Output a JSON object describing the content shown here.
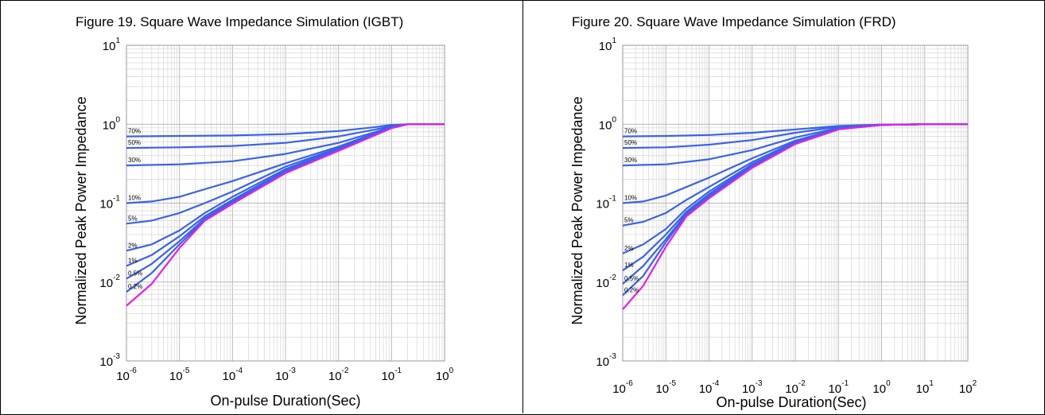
{
  "colors": {
    "duty_series": "#3a63e8",
    "single_pulse": "#e020e8",
    "grid": "#c8c8c8"
  },
  "chart_data": [
    {
      "type": "line",
      "title": "Figure 19. Square Wave Impedance Simulation (IGBT)",
      "xlabel": "On-pulse Duration(Sec)",
      "ylabel": "Normalized Peak Power Impedance",
      "xscale": "log",
      "yscale": "log",
      "xlim": [
        1e-06,
        1
      ],
      "ylim": [
        0.001,
        10
      ],
      "xticks": [
        {
          "base": "10",
          "exp": "-6"
        },
        {
          "base": "10",
          "exp": "-5"
        },
        {
          "base": "10",
          "exp": "-4"
        },
        {
          "base": "10",
          "exp": "-3"
        },
        {
          "base": "10",
          "exp": "-2"
        },
        {
          "base": "10",
          "exp": "-1"
        },
        {
          "base": "10",
          "exp": "0"
        }
      ],
      "yticks": [
        {
          "base": "10",
          "exp": "-3"
        },
        {
          "base": "10",
          "exp": "-2"
        },
        {
          "base": "10",
          "exp": "-1"
        },
        {
          "base": "10",
          "exp": "0"
        },
        {
          "base": "10",
          "exp": "1"
        }
      ],
      "grid": true,
      "series": [
        {
          "name": "70%",
          "x": [
            1e-06,
            1e-05,
            0.0001,
            0.001,
            0.01,
            0.05,
            0.1,
            0.2,
            1
          ],
          "y": [
            0.7,
            0.71,
            0.72,
            0.75,
            0.82,
            0.92,
            0.98,
            1.0,
            1.0
          ]
        },
        {
          "name": "50%",
          "x": [
            1e-06,
            1e-05,
            0.0001,
            0.001,
            0.01,
            0.05,
            0.1,
            0.2,
            1
          ],
          "y": [
            0.5,
            0.51,
            0.53,
            0.58,
            0.7,
            0.86,
            0.95,
            1.0,
            1.0
          ]
        },
        {
          "name": "30%",
          "x": [
            1e-06,
            1e-05,
            0.0001,
            0.001,
            0.01,
            0.05,
            0.1,
            0.2,
            1
          ],
          "y": [
            0.3,
            0.31,
            0.34,
            0.42,
            0.58,
            0.8,
            0.93,
            1.0,
            1.0
          ]
        },
        {
          "name": "10%",
          "x": [
            1e-06,
            3e-06,
            1e-05,
            3e-05,
            0.0001,
            0.001,
            0.01,
            0.1,
            0.2,
            1
          ],
          "y": [
            0.1,
            0.105,
            0.12,
            0.15,
            0.19,
            0.32,
            0.52,
            0.92,
            1.0,
            1.0
          ]
        },
        {
          "name": "5%",
          "x": [
            1e-06,
            3e-06,
            1e-05,
            3e-05,
            0.0001,
            0.001,
            0.01,
            0.1,
            0.2,
            1
          ],
          "y": [
            0.055,
            0.06,
            0.075,
            0.1,
            0.14,
            0.29,
            0.5,
            0.91,
            1.0,
            1.0
          ]
        },
        {
          "name": "2%",
          "x": [
            1e-06,
            3e-06,
            1e-05,
            3e-05,
            0.0001,
            0.001,
            0.01,
            0.1,
            0.2,
            1
          ],
          "y": [
            0.025,
            0.03,
            0.045,
            0.075,
            0.12,
            0.27,
            0.49,
            0.9,
            1.0,
            1.0
          ]
        },
        {
          "name": "1%",
          "x": [
            1e-06,
            3e-06,
            1e-05,
            3e-05,
            0.0001,
            0.001,
            0.01,
            0.1,
            0.2,
            1
          ],
          "y": [
            0.016,
            0.022,
            0.038,
            0.068,
            0.11,
            0.26,
            0.48,
            0.9,
            1.0,
            1.0
          ]
        },
        {
          "name": "0.5%",
          "x": [
            1e-06,
            3e-06,
            1e-05,
            3e-05,
            0.0001,
            0.001,
            0.01,
            0.1,
            0.2,
            1
          ],
          "y": [
            0.011,
            0.017,
            0.033,
            0.064,
            0.105,
            0.255,
            0.48,
            0.9,
            1.0,
            1.0
          ]
        },
        {
          "name": "0.2%",
          "x": [
            1e-06,
            3e-06,
            1e-05,
            3e-05,
            0.0001,
            0.001,
            0.01,
            0.1,
            0.2,
            1
          ],
          "y": [
            0.0075,
            0.013,
            0.03,
            0.062,
            0.1,
            0.25,
            0.47,
            0.9,
            1.0,
            1.0
          ]
        },
        {
          "name": "",
          "single": true,
          "x": [
            1e-06,
            3e-06,
            1e-05,
            3e-05,
            0.0001,
            0.001,
            0.01,
            0.1,
            0.2,
            1
          ],
          "y": [
            0.005,
            0.0095,
            0.027,
            0.06,
            0.098,
            0.24,
            0.46,
            0.89,
            1.0,
            1.0
          ]
        }
      ]
    },
    {
      "type": "line",
      "title": "Figure 20. Square Wave Impedance Simulation (FRD)",
      "xlabel": "On-pulse Duration(Sec)",
      "ylabel": "Normalized Peak Power Impedance",
      "xscale": "log",
      "yscale": "log",
      "xlim": [
        1e-06,
        100
      ],
      "ylim": [
        0.001,
        10
      ],
      "xticks": [
        {
          "base": "10",
          "exp": "-6"
        },
        {
          "base": "10",
          "exp": "-5"
        },
        {
          "base": "10",
          "exp": "-4"
        },
        {
          "base": "10",
          "exp": "-3"
        },
        {
          "base": "10",
          "exp": "-2"
        },
        {
          "base": "10",
          "exp": "-1"
        },
        {
          "base": "10",
          "exp": "0"
        },
        {
          "base": "10",
          "exp": "1"
        },
        {
          "base": "10",
          "exp": "2"
        }
      ],
      "yticks": [
        {
          "base": "10",
          "exp": "-3"
        },
        {
          "base": "10",
          "exp": "-2"
        },
        {
          "base": "10",
          "exp": "-1"
        },
        {
          "base": "10",
          "exp": "0"
        },
        {
          "base": "10",
          "exp": "1"
        }
      ],
      "grid": true,
      "series": [
        {
          "name": "70%",
          "x": [
            1e-06,
            1e-05,
            0.0001,
            0.001,
            0.01,
            0.1,
            1,
            10,
            100
          ],
          "y": [
            0.7,
            0.71,
            0.73,
            0.78,
            0.86,
            0.95,
            0.99,
            1.0,
            1.0
          ]
        },
        {
          "name": "50%",
          "x": [
            1e-06,
            1e-05,
            0.0001,
            0.001,
            0.01,
            0.1,
            1,
            10,
            100
          ],
          "y": [
            0.5,
            0.51,
            0.55,
            0.63,
            0.78,
            0.93,
            0.99,
            1.0,
            1.0
          ]
        },
        {
          "name": "30%",
          "x": [
            1e-06,
            1e-05,
            0.0001,
            0.001,
            0.01,
            0.1,
            1,
            10,
            100
          ],
          "y": [
            0.3,
            0.31,
            0.36,
            0.47,
            0.68,
            0.9,
            0.98,
            1.0,
            1.0
          ]
        },
        {
          "name": "10%",
          "x": [
            1e-06,
            3e-06,
            1e-05,
            3e-05,
            0.0001,
            0.001,
            0.01,
            0.1,
            1,
            10,
            100
          ],
          "y": [
            0.1,
            0.105,
            0.125,
            0.16,
            0.21,
            0.37,
            0.62,
            0.88,
            0.98,
            1.0,
            1.0
          ]
        },
        {
          "name": "5%",
          "x": [
            1e-06,
            3e-06,
            1e-05,
            3e-05,
            0.0001,
            0.001,
            0.01,
            0.1,
            1,
            10,
            100
          ],
          "y": [
            0.052,
            0.058,
            0.075,
            0.11,
            0.16,
            0.33,
            0.6,
            0.87,
            0.98,
            1.0,
            1.0
          ]
        },
        {
          "name": "2%",
          "x": [
            1e-06,
            3e-06,
            1e-05,
            3e-05,
            0.0001,
            0.001,
            0.01,
            0.1,
            1,
            10,
            100
          ],
          "y": [
            0.023,
            0.03,
            0.047,
            0.085,
            0.14,
            0.31,
            0.58,
            0.87,
            0.98,
            1.0,
            1.0
          ]
        },
        {
          "name": "1%",
          "x": [
            1e-06,
            3e-06,
            1e-05,
            3e-05,
            0.0001,
            0.001,
            0.01,
            0.1,
            1,
            10,
            100
          ],
          "y": [
            0.014,
            0.021,
            0.04,
            0.078,
            0.13,
            0.3,
            0.58,
            0.87,
            0.98,
            1.0,
            1.0
          ]
        },
        {
          "name": "0.5%",
          "x": [
            1e-06,
            3e-06,
            1e-05,
            3e-05,
            0.0001,
            0.001,
            0.01,
            0.1,
            1,
            10,
            100
          ],
          "y": [
            0.0095,
            0.016,
            0.035,
            0.074,
            0.125,
            0.295,
            0.57,
            0.87,
            0.98,
            1.0,
            1.0
          ]
        },
        {
          "name": "0.2%",
          "x": [
            1e-06,
            3e-06,
            1e-05,
            3e-05,
            0.0001,
            0.001,
            0.01,
            0.1,
            1,
            10,
            100
          ],
          "y": [
            0.0068,
            0.012,
            0.032,
            0.072,
            0.12,
            0.29,
            0.57,
            0.87,
            0.98,
            1.0,
            1.0
          ]
        },
        {
          "name": "",
          "single": true,
          "x": [
            1e-06,
            3e-06,
            1e-05,
            3e-05,
            0.0001,
            0.001,
            0.01,
            0.1,
            1,
            10,
            100
          ],
          "y": [
            0.0045,
            0.009,
            0.028,
            0.068,
            0.115,
            0.28,
            0.56,
            0.86,
            0.98,
            1.0,
            1.0
          ]
        }
      ]
    }
  ]
}
